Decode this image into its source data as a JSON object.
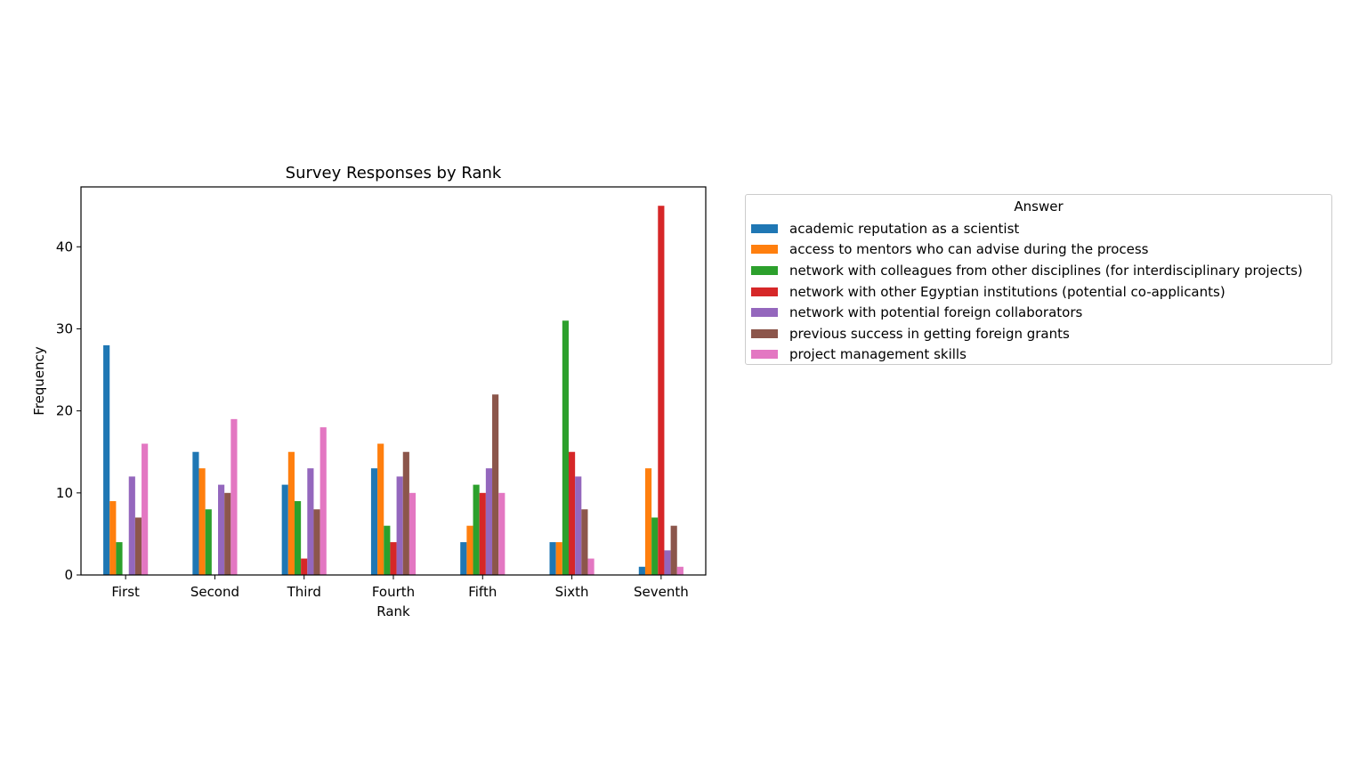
{
  "chart_data": {
    "type": "bar",
    "title": "Survey Responses by Rank",
    "xlabel": "Rank",
    "ylabel": "Frequency",
    "ylim": [
      0,
      47.3
    ],
    "yticks": [
      0,
      10,
      20,
      30,
      40
    ],
    "grid": false,
    "legend_title": "Answer",
    "legend_placement": "outside-right",
    "categories": [
      "First",
      "Second",
      "Third",
      "Fourth",
      "Fifth",
      "Sixth",
      "Seventh"
    ],
    "series": [
      {
        "name": "academic reputation as a scientist",
        "color": "#1f77b4",
        "values": [
          28,
          15,
          11,
          13,
          4,
          4,
          1
        ]
      },
      {
        "name": "access to mentors who can advise during the process",
        "color": "#ff7f0e",
        "values": [
          9,
          13,
          15,
          16,
          6,
          4,
          13
        ]
      },
      {
        "name": "network with colleagues from other disciplines (for interdisciplinary projects)",
        "color": "#2ca02c",
        "values": [
          4,
          8,
          9,
          6,
          11,
          31,
          7
        ]
      },
      {
        "name": "network with other Egyptian institutions (potential co-applicants)",
        "color": "#d62728",
        "values": [
          0,
          0,
          2,
          4,
          10,
          15,
          45
        ]
      },
      {
        "name": "network with potential foreign collaborators",
        "color": "#9467bd",
        "values": [
          12,
          11,
          13,
          12,
          13,
          12,
          3
        ]
      },
      {
        "name": "previous success in getting foreign grants",
        "color": "#8c564b",
        "values": [
          7,
          10,
          8,
          15,
          22,
          8,
          6
        ]
      },
      {
        "name": "project management skills",
        "color": "#e377c2",
        "values": [
          16,
          19,
          18,
          10,
          10,
          2,
          1
        ]
      }
    ]
  }
}
